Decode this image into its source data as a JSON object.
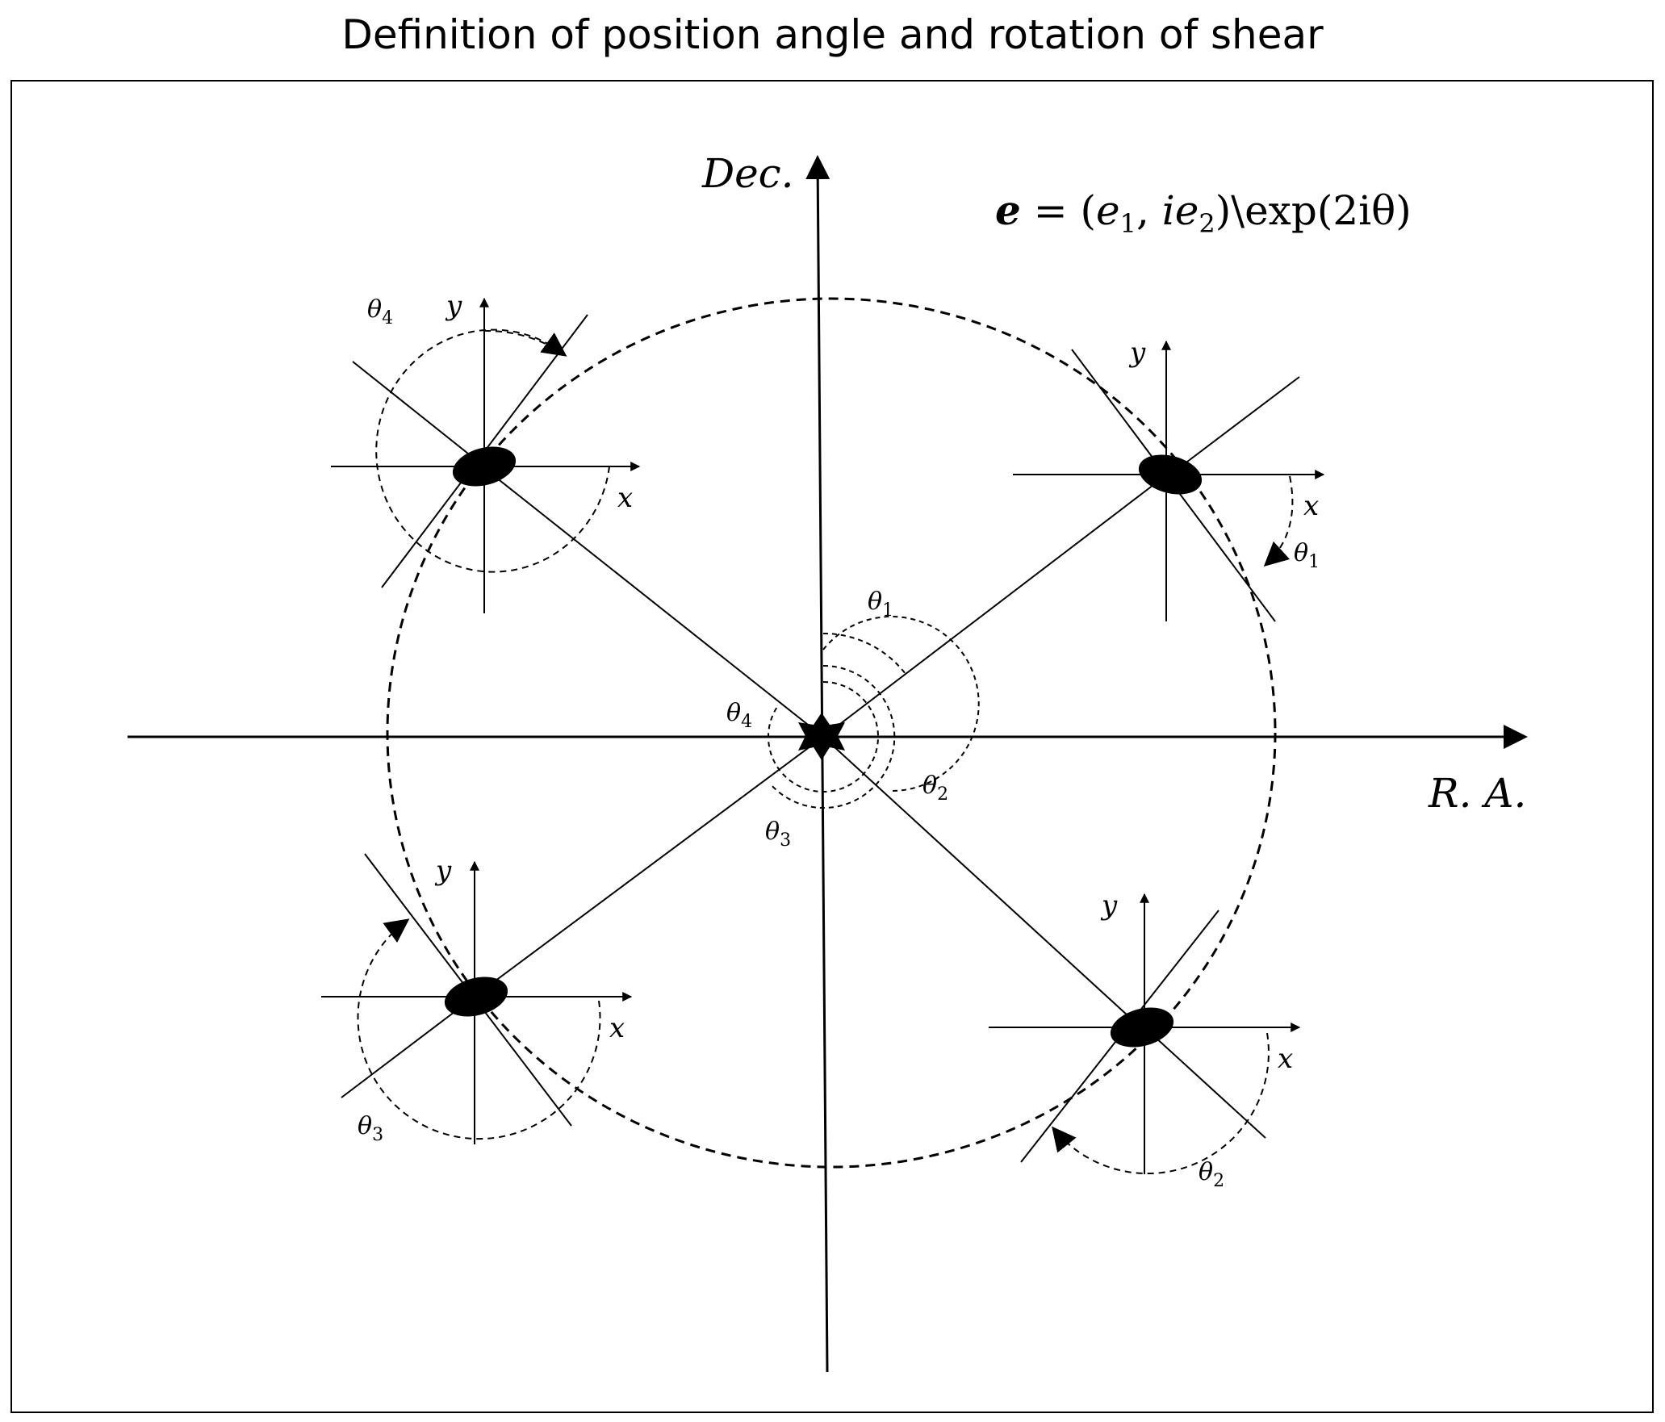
{
  "title": "Definition of position angle and rotation of shear",
  "axes": {
    "ra_label": "R. A.",
    "dec_label": "Dec."
  },
  "formula": {
    "bold_e": "e",
    "equals": " = (",
    "e1_base": "e",
    "e1_sub": "1",
    "comma": ", ",
    "ie2_base": "ie",
    "e2_sub": "2",
    "tail": ")\\exp(2iθ)"
  },
  "local_axes": {
    "x": "x",
    "y": "y"
  },
  "theta_symbol": "θ",
  "theta_subs": [
    "1",
    "2",
    "3",
    "4"
  ],
  "colors": {
    "ink": "#000000",
    "background": "#ffffff"
  }
}
